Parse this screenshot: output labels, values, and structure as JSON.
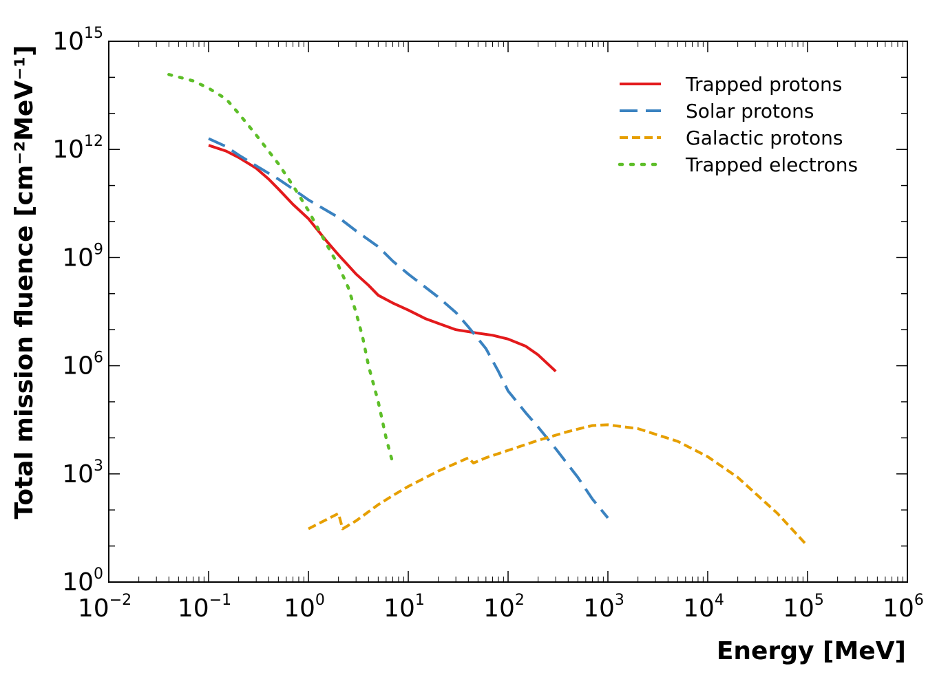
{
  "chart_data": {
    "type": "line",
    "xscale": "log",
    "yscale": "log",
    "xlim": [
      0.01,
      1000000
    ],
    "ylim": [
      1,
      1000000000000000
    ],
    "xlabel": "Energy [MeV]",
    "ylabel": "Total mission fluence [cm⁻²MeV⁻¹]",
    "x_ticks": [
      {
        "base": "10",
        "exp": "−2",
        "value": 0.01
      },
      {
        "base": "10",
        "exp": "−1",
        "value": 0.1
      },
      {
        "base": "10",
        "exp": "0",
        "value": 1
      },
      {
        "base": "10",
        "exp": "1",
        "value": 10
      },
      {
        "base": "10",
        "exp": "2",
        "value": 100
      },
      {
        "base": "10",
        "exp": "3",
        "value": 1000
      },
      {
        "base": "10",
        "exp": "4",
        "value": 10000
      },
      {
        "base": "10",
        "exp": "5",
        "value": 100000
      },
      {
        "base": "10",
        "exp": "6",
        "value": 1000000
      }
    ],
    "y_ticks": [
      {
        "base": "10",
        "exp": "0",
        "value": 1
      },
      {
        "base": "10",
        "exp": "3",
        "value": 1000
      },
      {
        "base": "10",
        "exp": "6",
        "value": 1000000
      },
      {
        "base": "10",
        "exp": "9",
        "value": 1000000000
      },
      {
        "base": "10",
        "exp": "12",
        "value": 1000000000000
      },
      {
        "base": "10",
        "exp": "15",
        "value": 1000000000000000
      }
    ],
    "grid": false,
    "legend_position": "top-right",
    "series": [
      {
        "name": "Trapped protons",
        "color": "#e31a1c",
        "dash": "solid",
        "points": [
          [
            0.1,
            1300000000000.0
          ],
          [
            0.15,
            900000000000.0
          ],
          [
            0.2,
            600000000000.0
          ],
          [
            0.3,
            300000000000.0
          ],
          [
            0.4,
            150000000000.0
          ],
          [
            0.5,
            80000000000.0
          ],
          [
            0.7,
            30000000000.0
          ],
          [
            1,
            12000000000.0
          ],
          [
            1.5,
            3000000000.0
          ],
          [
            2,
            1200000000.0
          ],
          [
            3,
            350000000.0
          ],
          [
            4,
            170000000.0
          ],
          [
            5,
            90000000.0
          ],
          [
            7,
            55000000.0
          ],
          [
            10,
            35000000.0
          ],
          [
            15,
            20000000.0
          ],
          [
            20,
            15000000.0
          ],
          [
            30,
            10000000.0
          ],
          [
            50,
            8000000.0
          ],
          [
            70,
            7000000.0
          ],
          [
            100,
            5500000.0
          ],
          [
            150,
            3500000.0
          ],
          [
            200,
            2000000.0
          ],
          [
            300,
            700000.0
          ]
        ]
      },
      {
        "name": "Solar protons",
        "color": "#3a82c0",
        "dash": "long-dash",
        "points": [
          [
            0.1,
            2000000000000.0
          ],
          [
            0.15,
            1200000000000.0
          ],
          [
            0.2,
            700000000000.0
          ],
          [
            0.3,
            350000000000.0
          ],
          [
            0.5,
            150000000000.0
          ],
          [
            0.7,
            80000000000.0
          ],
          [
            1,
            40000000000.0
          ],
          [
            2,
            13000000000.0
          ],
          [
            3,
            5500000000.0
          ],
          [
            5,
            2000000000.0
          ],
          [
            7,
            800000000.0
          ],
          [
            10,
            350000000.0
          ],
          [
            20,
            80000000.0
          ],
          [
            30,
            30000000.0
          ],
          [
            40,
            12000000.0
          ],
          [
            60,
            3000000.0
          ],
          [
            80,
            700000.0
          ],
          [
            100,
            200000.0
          ],
          [
            150,
            50000.0
          ],
          [
            200,
            20000.0
          ],
          [
            300,
            5000.0
          ],
          [
            500,
            800
          ],
          [
            700,
            200
          ],
          [
            1000,
            60
          ]
        ]
      },
      {
        "name": "Galactic protons",
        "color": "#e69f00",
        "dash": "short-dash",
        "points": [
          [
            1,
            30
          ],
          [
            2,
            80
          ],
          [
            2.2,
            30
          ],
          [
            3,
            50
          ],
          [
            5,
            140
          ],
          [
            7,
            250
          ],
          [
            10,
            450
          ],
          [
            20,
            1200
          ],
          [
            40,
            2800
          ],
          [
            45,
            2000
          ],
          [
            60,
            2800
          ],
          [
            100,
            4500
          ],
          [
            200,
            8500
          ],
          [
            400,
            15000
          ],
          [
            700,
            22000
          ],
          [
            1000,
            23000
          ],
          [
            2000,
            18000
          ],
          [
            5000,
            8000
          ],
          [
            10000,
            3000
          ],
          [
            20000,
            800
          ],
          [
            50000,
            80
          ],
          [
            100000,
            10
          ]
        ]
      },
      {
        "name": "Trapped electrons",
        "color": "#5dbe28",
        "dash": "dotted",
        "points": [
          [
            0.04,
            120000000000000.0
          ],
          [
            0.07,
            80000000000000.0
          ],
          [
            0.1,
            50000000000000.0
          ],
          [
            0.15,
            25000000000000.0
          ],
          [
            0.2,
            10000000000000.0
          ],
          [
            0.3,
            2500000000000.0
          ],
          [
            0.5,
            400000000000.0
          ],
          [
            0.7,
            100000000000.0
          ],
          [
            1,
            20000000000.0
          ],
          [
            1.5,
            2500000000.0
          ],
          [
            2,
            600000000.0
          ],
          [
            2.5,
            150000000.0
          ],
          [
            3,
            30000000.0
          ],
          [
            3.5,
            6000000.0
          ],
          [
            4,
            1000000.0
          ],
          [
            5,
            100000.0
          ],
          [
            6,
            10000.0
          ],
          [
            7,
            2000.0
          ]
        ]
      }
    ]
  }
}
